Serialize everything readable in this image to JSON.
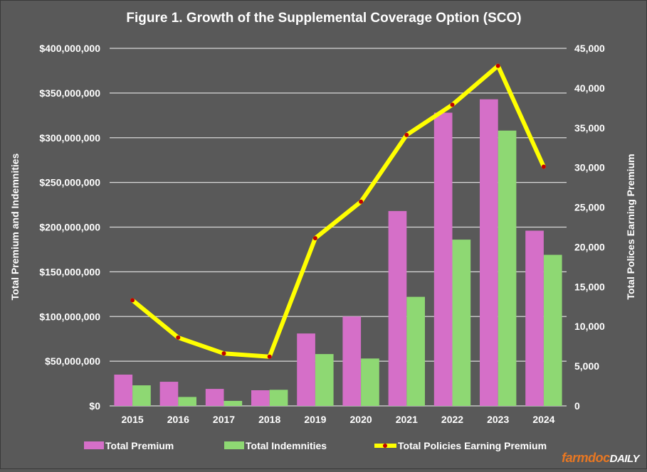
{
  "chart_data": {
    "type": "bar+line",
    "title": "Figure  1. Growth of the Supplemental Coverage Option (SCO)",
    "categories": [
      "2015",
      "2016",
      "2017",
      "2018",
      "2019",
      "2020",
      "2021",
      "2022",
      "2023",
      "2024"
    ],
    "ylabel_left": "Total Premium and Indemnities",
    "ylabel_right": "Total Polices Earning Premium",
    "ylim_left": [
      0,
      400000000
    ],
    "ylim_right": [
      0,
      45000
    ],
    "yticks_left": [
      "$0",
      "$50,000,000",
      "$100,000,000",
      "$150,000,000",
      "$200,000,000",
      "$250,000,000",
      "$300,000,000",
      "$350,000,000",
      "$400,000,000"
    ],
    "yticks_right": [
      "0",
      "5,000",
      "10,000",
      "15,000",
      "20,000",
      "25,000",
      "30,000",
      "35,000",
      "40,000",
      "45,000"
    ],
    "grid": true,
    "legend_position": "bottom",
    "series": [
      {
        "name": "Total Premium",
        "type": "bar",
        "axis": "left",
        "color": "#d56fc8",
        "values": [
          35000000,
          27000000,
          19000000,
          17500000,
          81000000,
          100000000,
          218000000,
          328000000,
          343000000,
          196000000
        ]
      },
      {
        "name": "Total Indemnities",
        "type": "bar",
        "axis": "left",
        "color": "#8ed873",
        "values": [
          23000000,
          10000000,
          5600000,
          18000000,
          58000000,
          53000000,
          122000000,
          186000000,
          308000000,
          169000000
        ]
      },
      {
        "name": "Total Policies Earning Premium",
        "type": "line",
        "axis": "right",
        "color": "#ffff00",
        "marker_color": "#c00000",
        "values": [
          13300,
          8600,
          6600,
          6200,
          21100,
          25700,
          34100,
          37900,
          42800,
          30100
        ]
      }
    ]
  },
  "logo": {
    "part1": "farmdoc",
    "part2": "DAILY"
  }
}
